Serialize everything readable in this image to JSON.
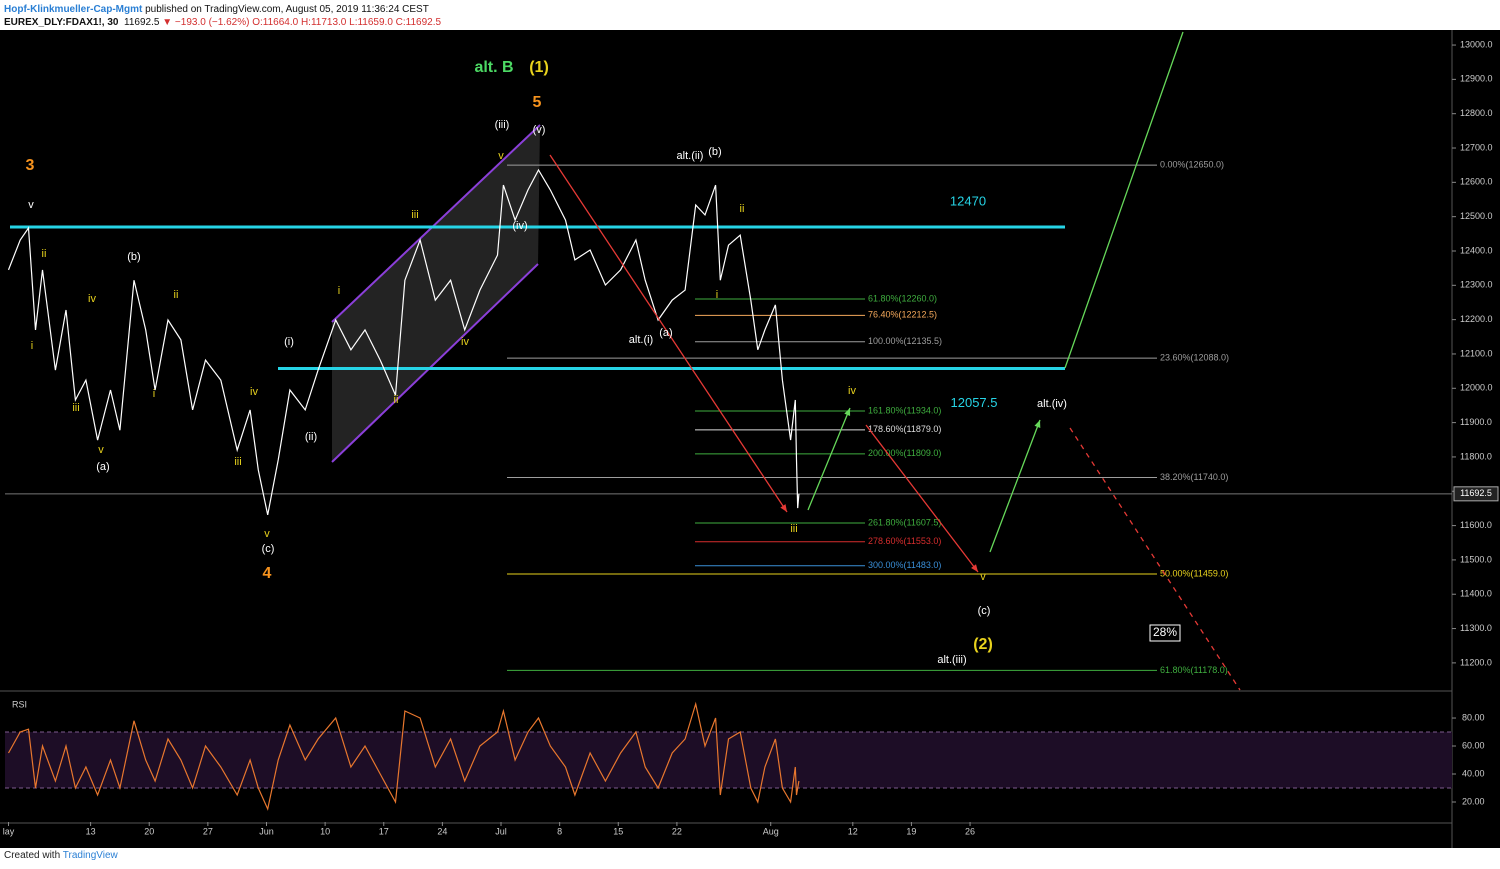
{
  "header": {
    "author": "Hopf-Klinkmueller-Cap-Mgmt",
    "published": "published on TradingView.com, August 05, 2019 11:36:24 CEST",
    "symbol": "EUREX_DLY:FDAX1!, 30",
    "last": "11692.5",
    "arrow": "▼",
    "change": "−193.0 (−1.62%)",
    "open": "O:11664.0",
    "high": "H:11713.0",
    "low": "L:11659.0",
    "close": "C:11692.5"
  },
  "chart_data": [
    {
      "type": "line",
      "x": [
        0,
        1.0,
        1.7,
        2.3,
        2.9,
        4.0,
        4.9,
        5.7,
        6.6,
        7.6,
        8.7,
        9.5,
        10.7,
        11.7,
        12.5,
        13.6,
        14.7,
        15.7,
        16.8,
        18.1,
        19.5,
        20.6,
        21.3,
        22.1,
        23.0,
        24.0,
        25.3,
        26.4,
        27.9,
        29.2,
        30.4,
        31.7,
        33.0,
        33.8,
        35.1,
        36.4,
        37.7,
        38.9,
        40.2,
        41.7,
        42.2,
        43.2,
        44.3,
        45.2,
        46.2,
        47.5,
        48.3,
        49.6,
        50.9,
        52.2,
        53.5,
        54.3,
        55.4,
        56.6,
        57.7,
        58.6,
        59.4,
        60.3,
        60.7,
        61.4,
        62.4,
        63.3,
        63.9,
        64.5,
        65.4,
        66.0,
        66.7,
        67.1,
        67.2,
        67.3,
        67.4
      ],
      "series": [
        {
          "color": "#ffffff",
          "values": [
            12345,
            12432,
            12467,
            12170,
            12345,
            12053,
            12228,
            11966,
            12024,
            11849,
            11995,
            11878,
            12315,
            12170,
            11995,
            12199,
            12141,
            11937,
            12082,
            12024,
            11820,
            11937,
            11762,
            11631,
            11791,
            11995,
            11937,
            12053,
            12199,
            12112,
            12170,
            12082,
            11980,
            12315,
            12432,
            12257,
            12315,
            12170,
            12286,
            12388,
            12592,
            12490,
            12578,
            12636,
            12578,
            12490,
            12374,
            12403,
            12301,
            12345,
            12432,
            12315,
            12199,
            12257,
            12286,
            12534,
            12505,
            12592,
            12315,
            12417,
            12446,
            12257,
            12112,
            12170,
            12243,
            12024,
            11849,
            11966,
            11791,
            11651,
            11692.5
          ]
        }
      ],
      "xlim": [
        -0.3,
        123.1
      ],
      "xticks": [
        {
          "value": 0,
          "label": "lay"
        },
        {
          "value": 7,
          "label": "13"
        },
        {
          "value": 12,
          "label": "20"
        },
        {
          "value": 17,
          "label": "27"
        },
        {
          "value": 22,
          "label": "Jun"
        },
        {
          "value": 27,
          "label": "10"
        },
        {
          "value": 32,
          "label": "17"
        },
        {
          "value": 37,
          "label": "24"
        },
        {
          "value": 42,
          "label": "Jul"
        },
        {
          "value": 47,
          "label": "8"
        },
        {
          "value": 52,
          "label": "15"
        },
        {
          "value": 57,
          "label": "22"
        },
        {
          "value": 65,
          "label": "Aug"
        },
        {
          "value": 72,
          "label": "12"
        },
        {
          "value": 77,
          "label": "19"
        },
        {
          "value": 82,
          "label": "26"
        }
      ],
      "ylim": [
        11121,
        13038
      ],
      "yticks": [
        {
          "value": 11200,
          "label": "11200.0"
        },
        {
          "value": 11300,
          "label": "11300.0"
        },
        {
          "value": 11400,
          "label": "11400.0"
        },
        {
          "value": 11500,
          "label": "11500.0"
        },
        {
          "value": 11600,
          "label": "11600.0"
        },
        {
          "value": 11700,
          "label": "11700.0"
        },
        {
          "value": 11800,
          "label": "11800.0"
        },
        {
          "value": 11900,
          "label": "11900.0"
        },
        {
          "value": 12000,
          "label": "12000.0"
        },
        {
          "value": 12100,
          "label": "12100.0"
        },
        {
          "value": 12200,
          "label": "12200.0"
        },
        {
          "value": 12300,
          "label": "12300.0"
        },
        {
          "value": 12400,
          "label": "12400.0"
        },
        {
          "value": 12500,
          "label": "12500.0"
        },
        {
          "value": 12600,
          "label": "12600.0"
        },
        {
          "value": 12700,
          "label": "12700.0"
        },
        {
          "value": 12800,
          "label": "12800.0"
        },
        {
          "value": 12900,
          "label": "12900.0"
        },
        {
          "value": 13000,
          "label": "13000.0"
        }
      ],
      "last_price": 11692.5,
      "levels": [
        {
          "value": 12470,
          "color": "#26d4e6"
        },
        {
          "value": 12057.5,
          "color": "#26d4e6"
        }
      ],
      "fib_levels": [
        {
          "value": 12650,
          "label": "0.00%(12650.0)",
          "color": "#9e9e9e"
        },
        {
          "value": 12088,
          "label": "23.60%(12088.0)",
          "color": "#9e9e9e"
        },
        {
          "value": 11740,
          "label": "38.20%(11740.0)",
          "color": "#9e9e9e"
        },
        {
          "value": 11459,
          "label": "50.00%(11459.0)",
          "color": "#e8d21d"
        },
        {
          "value": 11178,
          "label": "61.80%(11178.0)",
          "color": "#3fae3f"
        },
        {
          "value": 12260,
          "label": "61.80%(12260.0)",
          "color": "#3fae3f"
        },
        {
          "value": 12212.5,
          "label": "76.40%(12212.5)",
          "color": "#f5a95b"
        },
        {
          "value": 12135.5,
          "label": "100.00%(12135.5)",
          "color": "#9e9e9e"
        },
        {
          "value": 11934,
          "label": "161.80%(11934.0)",
          "color": "#3fae3f"
        },
        {
          "value": 11879,
          "label": "178.60%(11879.0)",
          "color": "#dddddd"
        },
        {
          "value": 11809,
          "label": "200.00%(11809.0)",
          "color": "#3fae3f"
        },
        {
          "value": 11607.5,
          "label": "261.80%(11607.5)",
          "color": "#3fae3f"
        },
        {
          "value": 11553,
          "label": "278.60%(11553.0)",
          "color": "#d62d2d"
        },
        {
          "value": 11483,
          "label": "300.00%(11483.0)",
          "color": "#3a8fd8"
        }
      ],
      "annotations": [
        {
          "text": "3",
          "color": "#f7931e"
        },
        {
          "text": "v",
          "color": "#ffffff"
        },
        {
          "text": "ii",
          "color": "#e8d21d"
        },
        {
          "text": "i",
          "color": "#e8d21d"
        },
        {
          "text": "iii",
          "color": "#e8d21d"
        },
        {
          "text": "iv",
          "color": "#e8d21d"
        },
        {
          "text": "v",
          "color": "#e8d21d"
        },
        {
          "text": "(a)",
          "color": "#ffffff"
        },
        {
          "text": "(b)",
          "color": "#ffffff"
        },
        {
          "text": "ii",
          "color": "#e8d21d"
        },
        {
          "text": "i",
          "color": "#e8d21d"
        },
        {
          "text": "iii",
          "color": "#e8d21d"
        },
        {
          "text": "iv",
          "color": "#e8d21d"
        },
        {
          "text": "v",
          "color": "#e8d21d"
        },
        {
          "text": "(c)",
          "color": "#ffffff"
        },
        {
          "text": "4",
          "color": "#f7931e"
        },
        {
          "text": "(i)",
          "color": "#ffffff"
        },
        {
          "text": "(ii)",
          "color": "#ffffff"
        },
        {
          "text": "i",
          "color": "#e8d21d"
        },
        {
          "text": "ii",
          "color": "#e8d21d"
        },
        {
          "text": "iii",
          "color": "#e8d21d"
        },
        {
          "text": "iv",
          "color": "#e8d21d"
        },
        {
          "text": "v",
          "color": "#e8d21d"
        },
        {
          "text": "(iii)",
          "color": "#ffffff"
        },
        {
          "text": "(v)",
          "color": "#ffffff"
        },
        {
          "text": "(iv)",
          "color": "#ffffff"
        },
        {
          "text": "alt. B",
          "color": "#4cd964"
        },
        {
          "text": "(1)",
          "color": "#e8d21d"
        },
        {
          "text": "5",
          "color": "#f7931e"
        },
        {
          "text": "alt.(ii)",
          "color": "#ffffff"
        },
        {
          "text": "(b)",
          "color": "#ffffff"
        },
        {
          "text": "ii",
          "color": "#e8d21d"
        },
        {
          "text": "i",
          "color": "#e8d21d"
        },
        {
          "text": "(a)",
          "color": "#ffffff"
        },
        {
          "text": "alt.(i)",
          "color": "#ffffff"
        },
        {
          "text": "iv",
          "color": "#e8d21d"
        },
        {
          "text": "iii",
          "color": "#e8d21d"
        },
        {
          "text": "v",
          "color": "#e8d21d"
        },
        {
          "text": "(c)",
          "color": "#ffffff"
        },
        {
          "text": "(2)",
          "color": "#e8d21d"
        },
        {
          "text": "alt.(iii)",
          "color": "#ffffff"
        },
        {
          "text": "alt.(iv)",
          "color": "#ffffff"
        }
      ],
      "box_label": "28%"
    },
    {
      "type": "line",
      "title": "RSI",
      "series": [
        {
          "color": "#e8772e",
          "values": [
            55,
            70,
            72,
            30,
            60,
            35,
            60,
            30,
            45,
            25,
            50,
            30,
            78,
            50,
            35,
            65,
            50,
            30,
            60,
            45,
            25,
            50,
            30,
            15,
            50,
            75,
            50,
            65,
            80,
            45,
            60,
            40,
            20,
            85,
            80,
            45,
            65,
            35,
            60,
            70,
            85,
            50,
            70,
            80,
            60,
            45,
            25,
            55,
            35,
            55,
            70,
            45,
            30,
            55,
            65,
            90,
            60,
            80,
            25,
            65,
            70,
            30,
            20,
            45,
            65,
            30,
            20,
            45,
            25,
            30,
            35
          ]
        }
      ],
      "ylim": [
        5.7,
        98.6
      ],
      "yticks": [
        {
          "value": 20,
          "label": "20.00"
        },
        {
          "value": 40,
          "label": "40.00"
        },
        {
          "value": 60,
          "label": "60.00"
        },
        {
          "value": 80,
          "label": "80.00"
        }
      ],
      "band": [
        30,
        70
      ]
    }
  ],
  "footer": {
    "created": "Created with",
    "brand": "TradingView"
  }
}
